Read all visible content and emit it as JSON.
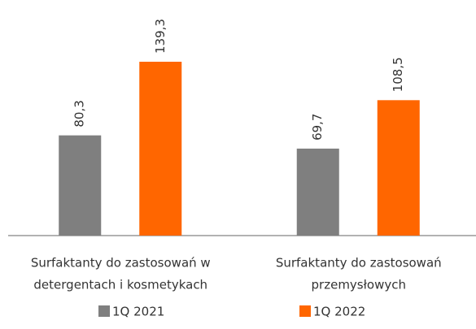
{
  "chart_data": {
    "type": "bar",
    "categories": [
      [
        "Surfaktanty do zastosowań w",
        "detergentach i kosmetykach"
      ],
      [
        "Surfaktanty do zastosowań",
        "przemysłowych"
      ]
    ],
    "series": [
      {
        "name": "1Q 2021",
        "color": "#7f7f7f",
        "values": [
          80.3,
          69.7
        ],
        "value_labels": [
          "80,3",
          "69,7"
        ]
      },
      {
        "name": "1Q 2022",
        "color": "#ff6600",
        "values": [
          139.3,
          108.5
        ],
        "value_labels": [
          "139,3",
          "108,5"
        ]
      }
    ],
    "grid": false
  }
}
